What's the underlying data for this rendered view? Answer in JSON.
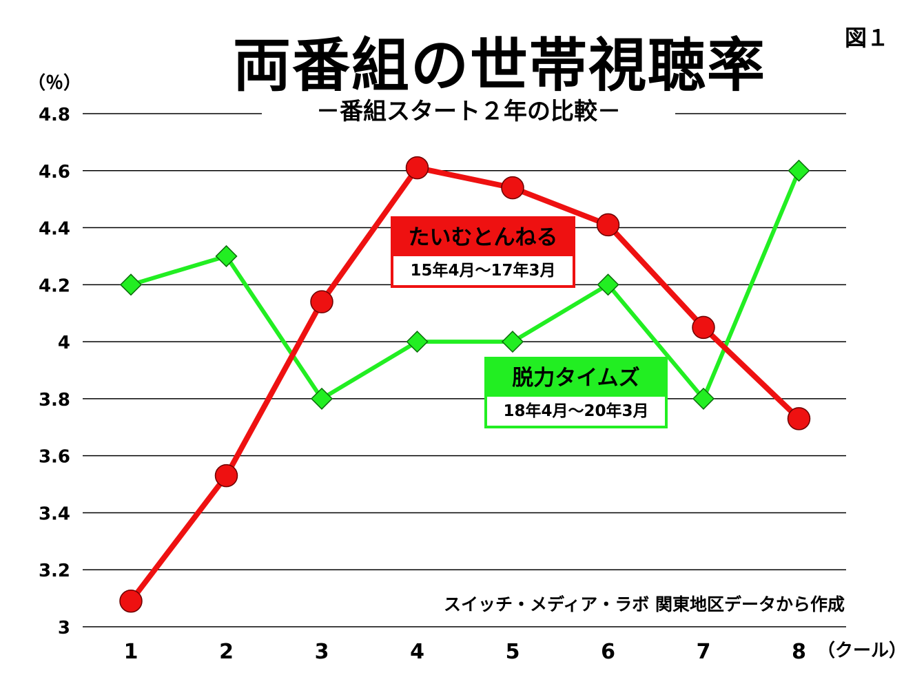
{
  "figure_label": "図１",
  "unit_label": "（％）",
  "x_unit_label": "（クール）",
  "source": "スイッチ・メディア・ラボ 関東地区データから作成",
  "colors": {
    "taimu": "#ee1111",
    "datsu": "#22ee22",
    "grid": "#000000"
  },
  "chart_data": {
    "type": "line",
    "title": "両番組の世帯視聴率",
    "subtitle": "－番組スタート２年の比較－",
    "x": [
      "1",
      "2",
      "3",
      "4",
      "5",
      "6",
      "7",
      "8"
    ],
    "ylim": [
      3,
      4.8
    ],
    "yticks": [
      "3",
      "3.2",
      "3.4",
      "3.6",
      "3.8",
      "4",
      "4.2",
      "4.4",
      "4.6",
      "4.8"
    ],
    "grid": true,
    "series": [
      {
        "name": "たいむとんねる",
        "period": "15年4月～17年3月",
        "marker": "circle",
        "color": "#ee1111",
        "values": [
          3.09,
          3.53,
          4.14,
          4.61,
          4.54,
          4.41,
          4.05,
          3.73
        ]
      },
      {
        "name": "脱力タイムズ",
        "period": "18年4月～20年3月",
        "marker": "diamond",
        "color": "#22ee22",
        "values": [
          4.2,
          4.3,
          3.8,
          4.0,
          4.0,
          4.2,
          3.8,
          4.6
        ]
      }
    ]
  }
}
